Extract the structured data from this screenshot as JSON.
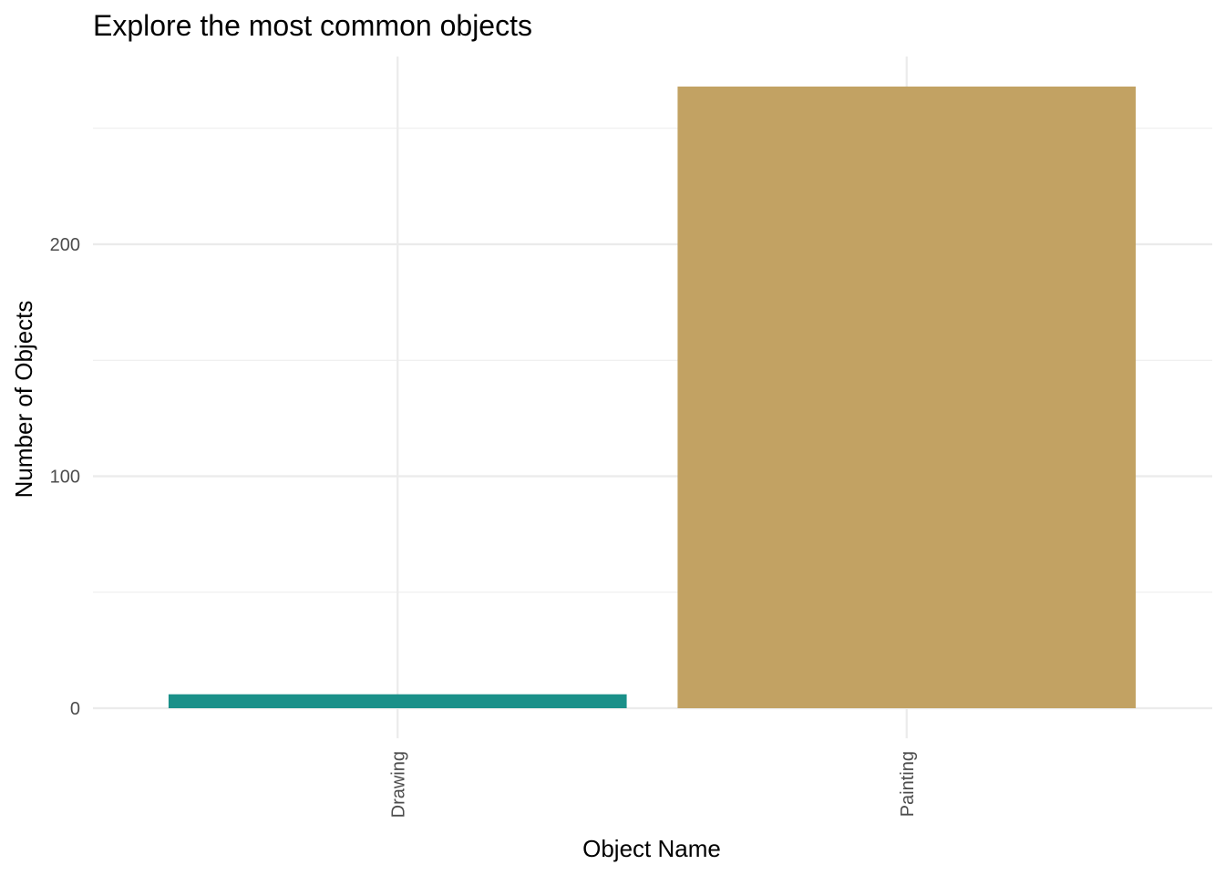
{
  "chart_data": {
    "type": "bar",
    "title": "Explore the most common objects",
    "xlabel": "Object Name",
    "ylabel": "Number of Objects",
    "categories": [
      "Drawing",
      "Painting"
    ],
    "values": [
      6,
      268
    ],
    "colors": [
      "#1a9089",
      "#c2a263"
    ],
    "ylim": [
      0,
      270
    ],
    "y_ticks": [
      0,
      100,
      200
    ],
    "y_minor_ticks": [
      50,
      150,
      250
    ],
    "grid": true,
    "legend": "none"
  }
}
